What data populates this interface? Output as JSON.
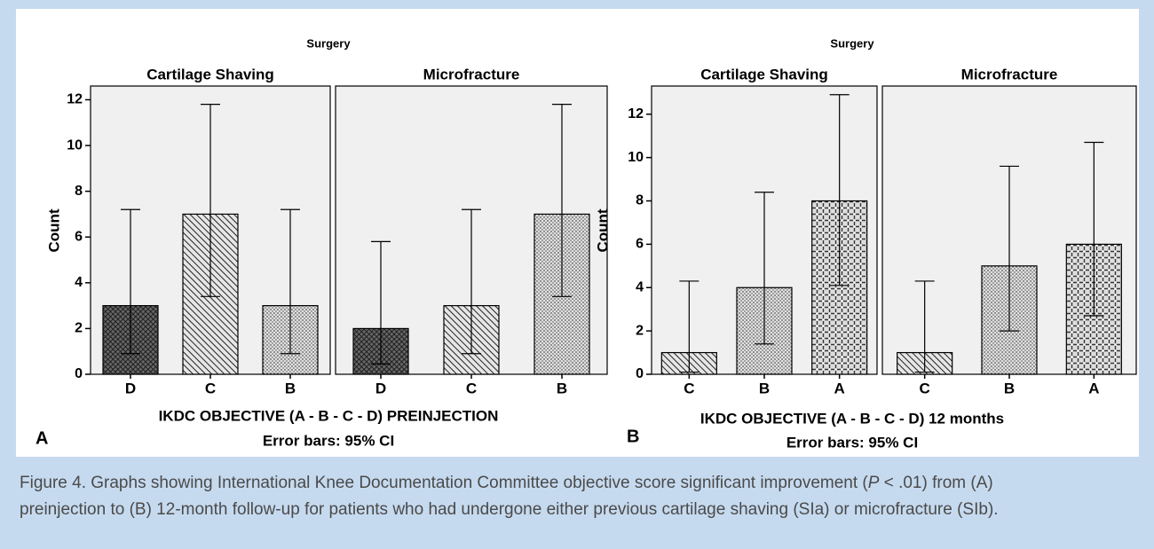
{
  "caption": {
    "start": "Figure 4. Graphs showing International Knee Documentation Committee objective score significant improvement (",
    "italic": "P",
    "end": " < .01) from (A)",
    "line2": "preinjection to (B) 12-month follow-up for patients who had undergone either previous cartilage shaving (SIa) or microfracture (SIb)."
  },
  "chart_data": [
    {
      "type": "bar",
      "panel_label": "A",
      "facet_header": "Surgery",
      "ylabel": "Count",
      "xlabel": "IKDC OBJECTIVE (A - B - C - D) PREINJECTION",
      "note": "Error bars: 95% CI",
      "ylim": [
        0,
        12.6
      ],
      "yticks": [
        0,
        2,
        4,
        6,
        8,
        10,
        12
      ],
      "facets": [
        {
          "title": "Cartilage Shaving",
          "categories": [
            "D",
            "C",
            "B"
          ],
          "values": [
            3,
            7,
            3
          ],
          "ci_low": [
            0.9,
            3.4,
            0.9
          ],
          "ci_high": [
            7.2,
            11.8,
            7.2
          ],
          "fills": [
            "dense-crosshatch",
            "diagonal",
            "dotted"
          ]
        },
        {
          "title": "Microfracture",
          "categories": [
            "D",
            "C",
            "B"
          ],
          "values": [
            2,
            3,
            7
          ],
          "ci_low": [
            0.45,
            0.9,
            3.4
          ],
          "ci_high": [
            5.8,
            7.2,
            11.8
          ],
          "fills": [
            "dense-crosshatch",
            "diagonal",
            "dotted"
          ]
        }
      ]
    },
    {
      "type": "bar",
      "panel_label": "B",
      "facet_header": "Surgery",
      "ylabel": "Count",
      "xlabel": "IKDC OBJECTIVE (A - B - C - D) 12 months",
      "note": "Error bars: 95% CI",
      "ylim": [
        0,
        13.3
      ],
      "yticks": [
        0,
        2,
        4,
        6,
        8,
        10,
        12
      ],
      "facets": [
        {
          "title": "Cartilage Shaving",
          "categories": [
            "C",
            "B",
            "A"
          ],
          "values": [
            1,
            4,
            8
          ],
          "ci_low": [
            0.1,
            1.4,
            4.1
          ],
          "ci_high": [
            4.3,
            8.4,
            12.9
          ],
          "fills": [
            "diagonal",
            "dotted",
            "crosshatch"
          ]
        },
        {
          "title": "Microfracture",
          "categories": [
            "C",
            "B",
            "A"
          ],
          "values": [
            1,
            5,
            6
          ],
          "ci_low": [
            0.1,
            2.0,
            2.7
          ],
          "ci_high": [
            4.3,
            9.6,
            10.7
          ],
          "fills": [
            "diagonal",
            "dotted",
            "crosshatch"
          ]
        }
      ]
    }
  ]
}
